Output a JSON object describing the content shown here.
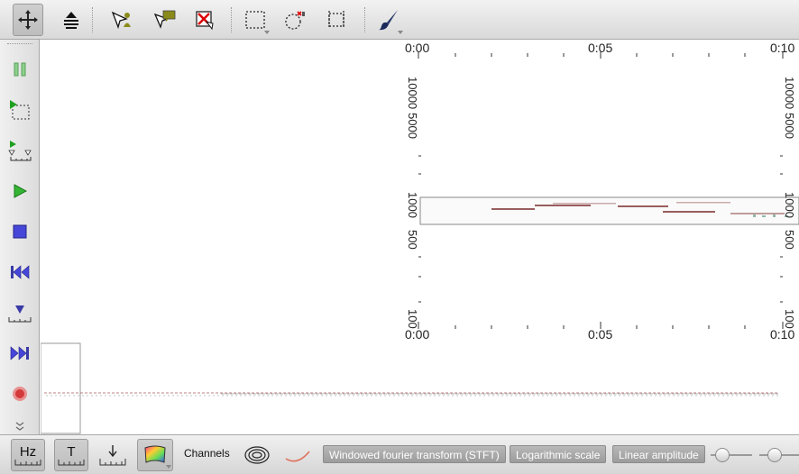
{
  "toolbar_top": {
    "tools": [
      {
        "name": "navigate-tool",
        "icon": "move-arrows-icon"
      },
      {
        "name": "zoom-tool",
        "icon": "zoom-stack-icon"
      },
      {
        "name": "add-point-tool",
        "icon": "add-point-icon"
      },
      {
        "name": "add-comment-tool",
        "icon": "comment-icon"
      },
      {
        "name": "remove-tool",
        "icon": "remove-red-x-icon"
      },
      {
        "name": "select-rect-tool",
        "icon": "rectangle-select-icon"
      },
      {
        "name": "select-ellipse-tool",
        "icon": "ellipse-select-icon"
      },
      {
        "name": "select-crop-tool",
        "icon": "crop-icon"
      },
      {
        "name": "brush-tool",
        "icon": "brush-icon"
      }
    ]
  },
  "toolbar_left": {
    "items": [
      "pause-icon",
      "play-selection-icon",
      "play-section-icon",
      "play-icon",
      "stop-icon",
      "rewind-icon",
      "set-marker-icon",
      "fast-forward-icon",
      "record-icon",
      "more-chevron-icon"
    ]
  },
  "plot": {
    "time_ticks": [
      "0:00",
      "0:05",
      "0:10"
    ],
    "freq_ticks_upper": [
      "10000",
      "5000"
    ],
    "freq_ticks_mid": [
      "1000",
      "500"
    ],
    "freq_ticks_low": [
      "100"
    ]
  },
  "toolbar_bottom": {
    "hz_label": "Hz",
    "t_label": "T",
    "channels_label": "Channels",
    "transform_label": "Windowed fourier transform (STFT)",
    "scale_label": "Logarithmic scale",
    "amplitude_label": "Linear amplitude"
  }
}
